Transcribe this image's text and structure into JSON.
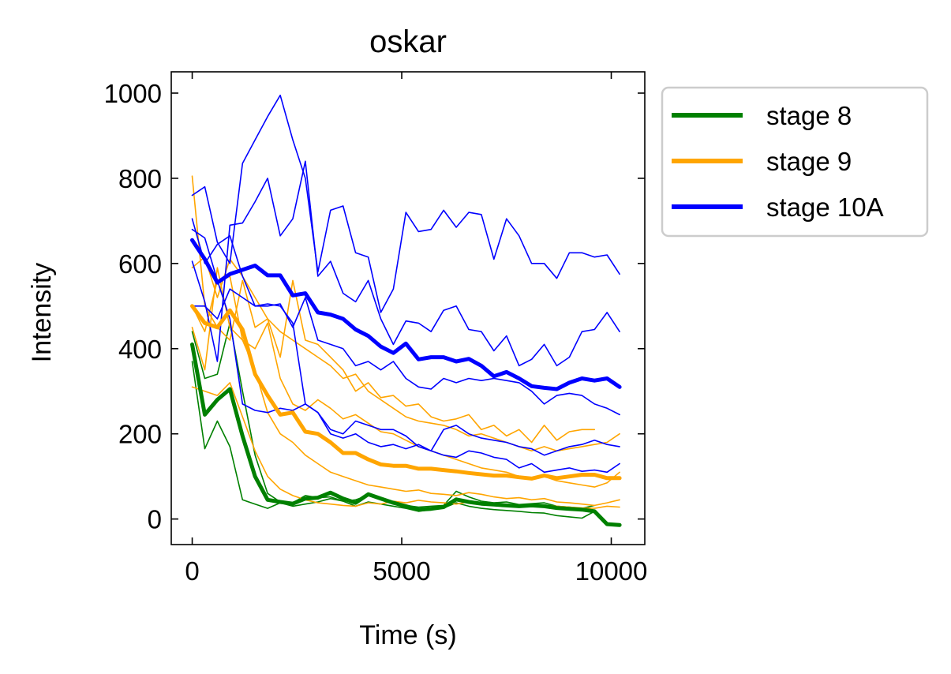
{
  "chart_data": {
    "type": "line",
    "title": "oskar",
    "xlabel": "Time (s)",
    "ylabel": "Intensity",
    "xlim": [
      -500,
      10800
    ],
    "ylim": [
      -60,
      1050
    ],
    "xticks": [
      0,
      5000,
      10000
    ],
    "xtick_labels": [
      "0",
      "5000",
      "10000"
    ],
    "yticks": [
      0,
      200,
      400,
      600,
      800,
      1000
    ],
    "ytick_labels": [
      "0",
      "200",
      "400",
      "600",
      "800",
      "1000"
    ],
    "grid": false,
    "legend_position": "outside-right-top",
    "colors": {
      "stage 8": "#008000",
      "stage 9": "#FFA500",
      "stage 10A": "#0000FF"
    },
    "legend": [
      "stage 8",
      "stage 9",
      "stage 10A"
    ],
    "series": [
      {
        "name": "stage 8",
        "role": "mean",
        "color": "#008000",
        "width": 5,
        "x": [
          0,
          300,
          600,
          900,
          1200,
          1500,
          1800,
          2100,
          2400,
          2700,
          3000,
          3300,
          3600,
          3900,
          4200,
          4500,
          4800,
          5100,
          5400,
          5700,
          6000,
          6300,
          6600,
          6900,
          7200,
          7500,
          7800,
          8100,
          8400,
          8700,
          9000,
          9300,
          9600,
          9900,
          10200
        ],
        "y": [
          410,
          245,
          280,
          305,
          195,
          100,
          45,
          40,
          36,
          48,
          50,
          62,
          48,
          38,
          58,
          48,
          38,
          30,
          22,
          24,
          28,
          46,
          40,
          36,
          34,
          32,
          30,
          32,
          30,
          26,
          24,
          22,
          18,
          -12,
          -14
        ]
      },
      {
        "name": "stage 9",
        "role": "mean",
        "color": "#FFA500",
        "width": 5,
        "x": [
          0,
          300,
          600,
          900,
          1200,
          1500,
          1800,
          2100,
          2400,
          2700,
          3000,
          3300,
          3600,
          3900,
          4200,
          4500,
          4800,
          5100,
          5400,
          5700,
          6000,
          6300,
          6600,
          6900,
          7200,
          7500,
          7800,
          8100,
          8400,
          8700,
          9000,
          9300,
          9600,
          9900,
          10200
        ],
        "y": [
          500,
          460,
          450,
          490,
          445,
          340,
          290,
          245,
          250,
          205,
          200,
          180,
          155,
          155,
          140,
          128,
          125,
          125,
          118,
          118,
          115,
          112,
          108,
          105,
          102,
          102,
          98,
          95,
          102,
          96,
          100,
          104,
          104,
          96,
          96
        ]
      },
      {
        "name": "stage 10A",
        "role": "mean",
        "color": "#0000FF",
        "width": 5,
        "x": [
          0,
          300,
          600,
          900,
          1200,
          1500,
          1800,
          2100,
          2400,
          2700,
          3000,
          3300,
          3600,
          3900,
          4200,
          4500,
          4800,
          5100,
          5400,
          5700,
          6000,
          6300,
          6600,
          6900,
          7200,
          7500,
          7800,
          8100,
          8400,
          8700,
          9000,
          9300,
          9600,
          9900,
          10200
        ],
        "y": [
          655,
          610,
          555,
          575,
          585,
          595,
          572,
          572,
          525,
          530,
          485,
          480,
          470,
          445,
          430,
          405,
          390,
          412,
          375,
          380,
          380,
          370,
          376,
          360,
          335,
          345,
          330,
          312,
          308,
          305,
          320,
          330,
          325,
          330,
          310
        ]
      },
      {
        "name": "stage 8",
        "role": "individual",
        "color": "#008000",
        "width": 1.6,
        "x": [
          0,
          300,
          600,
          900,
          1200,
          1500,
          1800,
          2100,
          2400,
          2700,
          3000,
          3300,
          3600,
          3900,
          4200,
          4500,
          4800,
          5100,
          5400,
          5700,
          6000,
          6300,
          6600,
          6900,
          7200,
          7500,
          7800,
          8100,
          8400,
          8700,
          9000,
          9300,
          9600
        ],
        "y": [
          440,
          330,
          340,
          460,
          300,
          150,
          60,
          40,
          38,
          55,
          50,
          52,
          42,
          45,
          55,
          48,
          40,
          32,
          28,
          30,
          32,
          65,
          52,
          42,
          38,
          40,
          34,
          36,
          38,
          30,
          28,
          25,
          32
        ]
      },
      {
        "name": "stage 8",
        "role": "individual",
        "color": "#008000",
        "width": 1.6,
        "x": [
          0,
          300,
          600,
          900,
          1200,
          1500,
          1800,
          2100,
          2400,
          2700,
          3000,
          3300,
          3600,
          3900,
          4200,
          4500,
          4800,
          5100,
          5400,
          5700,
          6000,
          6300,
          6600,
          6900,
          7200,
          7500,
          7800,
          8100,
          8400,
          8700,
          9000,
          9300,
          9600
        ],
        "y": [
          370,
          165,
          230,
          170,
          45,
          35,
          25,
          38,
          30,
          35,
          40,
          48,
          42,
          30,
          40,
          35,
          30,
          25,
          18,
          22,
          26,
          38,
          30,
          25,
          22,
          20,
          18,
          15,
          14,
          8,
          5,
          2,
          18
        ]
      },
      {
        "name": "stage 9",
        "role": "individual",
        "color": "#FFA500",
        "width": 1.6,
        "x": [
          0,
          300,
          600,
          900,
          1200,
          1500,
          1800,
          2100,
          2400,
          2700,
          3000,
          3300,
          3600,
          3900,
          4200,
          4500,
          4800,
          5100,
          5400,
          5700,
          6000,
          6300,
          6600,
          6900,
          7200,
          7500,
          7800,
          8100,
          8400,
          8700,
          9000,
          9300,
          9600
        ],
        "y": [
          805,
          500,
          450,
          420,
          560,
          450,
          470,
          380,
          560,
          420,
          410,
          380,
          350,
          300,
          320,
          285,
          290,
          265,
          270,
          240,
          230,
          235,
          245,
          210,
          220,
          195,
          210,
          180,
          220,
          185,
          205,
          210,
          210
        ]
      },
      {
        "name": "stage 9",
        "role": "individual",
        "color": "#FFA500",
        "width": 1.6,
        "x": [
          0,
          300,
          600,
          900,
          1200,
          1500,
          1800,
          2100,
          2400,
          2700,
          3000,
          3300,
          3600,
          3900,
          4200,
          4500,
          4800,
          5100,
          5400,
          5700,
          6000,
          6300,
          6600,
          6900,
          7200,
          7500,
          7800,
          8100,
          8400,
          8700,
          9000,
          9300,
          9600,
          9900,
          10200
        ],
        "y": [
          590,
          615,
          520,
          610,
          570,
          520,
          470,
          440,
          420,
          400,
          380,
          360,
          330,
          340,
          300,
          280,
          260,
          240,
          230,
          225,
          220,
          210,
          195,
          200,
          190,
          180,
          170,
          160,
          170,
          160,
          165,
          170,
          175,
          180,
          200
        ]
      },
      {
        "name": "stage 9",
        "role": "individual",
        "color": "#FFA500",
        "width": 1.6,
        "x": [
          0,
          300,
          600,
          900,
          1200,
          1500,
          1800,
          2100,
          2400,
          2700,
          3000,
          3300,
          3600,
          3900,
          4200,
          4500,
          4800,
          5100,
          5400,
          5700,
          6000,
          6300,
          6600,
          6900,
          7200,
          7500,
          7800,
          8100,
          8400,
          8700,
          9000,
          9300,
          9600,
          9900,
          10200
        ],
        "y": [
          500,
          440,
          560,
          570,
          420,
          400,
          460,
          330,
          270,
          255,
          280,
          260,
          235,
          245,
          225,
          205,
          200,
          185,
          170,
          160,
          150,
          140,
          130,
          120,
          115,
          110,
          100,
          95,
          100,
          90,
          85,
          80,
          75,
          85,
          110
        ]
      },
      {
        "name": "stage 9",
        "role": "individual",
        "color": "#FFA500",
        "width": 1.6,
        "x": [
          0,
          300,
          600,
          900,
          1200,
          1500,
          1800,
          2100,
          2400,
          2700,
          3000,
          3300,
          3600,
          3900,
          4200,
          4500,
          4800,
          5100,
          5400,
          5700,
          6000,
          6300,
          6600,
          6900,
          7200,
          7500,
          7800,
          8100,
          8400,
          8700,
          9000,
          9300,
          9600,
          9900,
          10200
        ],
        "y": [
          450,
          350,
          590,
          450,
          420,
          350,
          250,
          200,
          180,
          150,
          130,
          110,
          100,
          90,
          80,
          75,
          70,
          65,
          68,
          60,
          58,
          55,
          62,
          58,
          52,
          48,
          50,
          45,
          48,
          40,
          38,
          35,
          32,
          38,
          45
        ]
      },
      {
        "name": "stage 9",
        "role": "individual",
        "color": "#FFA500",
        "width": 1.6,
        "x": [
          0,
          300,
          600,
          900,
          1200,
          1500,
          1800,
          2100,
          2400,
          2700,
          3000,
          3300,
          3600,
          3900,
          4200,
          4500,
          4800,
          5100,
          5400,
          5700,
          6000,
          6300,
          6600,
          6900,
          7200,
          7500,
          7800,
          8100,
          8400,
          8700,
          9000,
          9300,
          9600,
          9900,
          10200
        ],
        "y": [
          310,
          300,
          290,
          320,
          240,
          160,
          100,
          70,
          55,
          45,
          38,
          35,
          32,
          30,
          38,
          35,
          42,
          38,
          44,
          40,
          38,
          35,
          40,
          38,
          36,
          34,
          33,
          30,
          32,
          30,
          28,
          26,
          25,
          30,
          28
        ]
      },
      {
        "name": "stage 10A",
        "role": "individual",
        "color": "#0000FF",
        "width": 1.6,
        "x": [
          0,
          300,
          600,
          900,
          1200,
          1500,
          1800,
          2100,
          2400,
          2700,
          3000,
          3300,
          3600,
          3900,
          4200,
          4500,
          4800,
          5100,
          5400,
          5700,
          6000,
          6300,
          6600,
          6900,
          7200,
          7500,
          7800,
          8100,
          8400,
          8700,
          9000,
          9300,
          9600,
          9900,
          10200
        ],
        "y": [
          760,
          780,
          650,
          600,
          835,
          890,
          945,
          995,
          890,
          800,
          580,
          725,
          735,
          625,
          615,
          485,
          540,
          720,
          675,
          680,
          725,
          685,
          720,
          715,
          610,
          705,
          665,
          600,
          600,
          565,
          625,
          625,
          615,
          620,
          575
        ]
      },
      {
        "name": "stage 10A",
        "role": "individual",
        "color": "#0000FF",
        "width": 1.6,
        "x": [
          0,
          300,
          600,
          900,
          1200,
          1500,
          1800,
          2100,
          2400,
          2700,
          3000,
          3300,
          3600,
          3900,
          4200,
          4500,
          4800,
          5100,
          5400,
          5700,
          6000,
          6300,
          6600,
          6900,
          7200,
          7500,
          7800,
          8100,
          8400,
          8700,
          9000,
          9300,
          9600,
          9900,
          10200
        ],
        "y": [
          605,
          510,
          370,
          690,
          695,
          745,
          800,
          665,
          705,
          840,
          570,
          605,
          530,
          510,
          560,
          470,
          410,
          465,
          460,
          440,
          490,
          500,
          445,
          440,
          395,
          430,
          360,
          375,
          410,
          360,
          380,
          440,
          445,
          485,
          440
        ]
      },
      {
        "name": "stage 10A",
        "role": "individual",
        "color": "#0000FF",
        "width": 1.6,
        "x": [
          0,
          300,
          600,
          900,
          1200,
          1500,
          1800,
          2100,
          2400,
          2700,
          3000,
          3300,
          3600,
          3900,
          4200,
          4500,
          4800,
          5100,
          5400,
          5700,
          6000,
          6300,
          6600,
          6900,
          7200,
          7500,
          7800,
          8100,
          8400,
          8700,
          9000,
          9300,
          9600,
          9900,
          10200
        ],
        "y": [
          705,
          600,
          645,
          665,
          570,
          500,
          500,
          505,
          450,
          520,
          420,
          410,
          400,
          360,
          370,
          350,
          370,
          330,
          310,
          305,
          330,
          320,
          330,
          325,
          330,
          325,
          320,
          300,
          270,
          290,
          295,
          290,
          270,
          260,
          245
        ]
      },
      {
        "name": "stage 10A",
        "role": "individual",
        "color": "#0000FF",
        "width": 1.6,
        "x": [
          0,
          300,
          600,
          900,
          1200,
          1500,
          1800,
          2100,
          2400,
          2700,
          3000,
          3300,
          3600,
          3900,
          4200,
          4500,
          4800,
          5100,
          5400,
          5700,
          6000,
          6300,
          6600,
          6900,
          7200,
          7500,
          7800,
          8100,
          8400,
          8700,
          9000,
          9300,
          9600,
          9900,
          10200
        ],
        "y": [
          680,
          660,
          560,
          470,
          270,
          255,
          250,
          260,
          255,
          270,
          250,
          210,
          200,
          230,
          220,
          210,
          210,
          195,
          170,
          160,
          210,
          220,
          200,
          190,
          185,
          180,
          170,
          165,
          150,
          160,
          170,
          175,
          185,
          175,
          170
        ]
      },
      {
        "name": "stage 10A",
        "role": "individual",
        "color": "#0000FF",
        "width": 1.6,
        "x": [
          0,
          300,
          600,
          900,
          1200,
          1500,
          1800,
          2100,
          2400,
          2700,
          3000,
          3300,
          3600,
          3900,
          4200,
          4500,
          4800,
          5100,
          5400,
          5700,
          6000,
          6300,
          6600,
          6900,
          7200,
          7500,
          7800,
          8100,
          8400,
          8700,
          9000,
          9300,
          9600,
          9900,
          10200
        ],
        "y": [
          500,
          500,
          470,
          540,
          520,
          500,
          505,
          500,
          460,
          270,
          250,
          200,
          190,
          200,
          180,
          170,
          175,
          165,
          175,
          160,
          150,
          145,
          160,
          155,
          145,
          140,
          120,
          130,
          110,
          115,
          120,
          112,
          115,
          110,
          130
        ]
      }
    ]
  }
}
